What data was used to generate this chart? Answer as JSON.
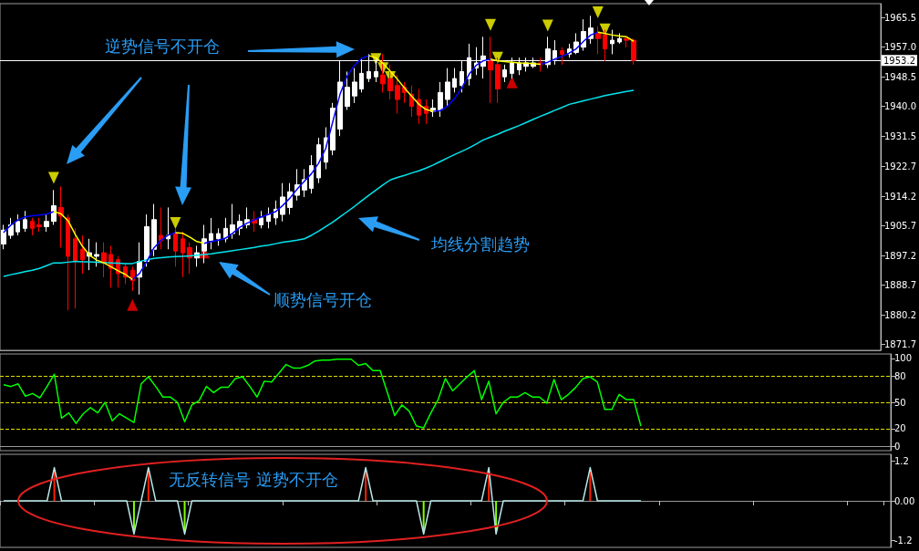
{
  "chart_data": [
    {
      "type": "candlestick",
      "categories": [
        null,
        null,
        null,
        null,
        null,
        null,
        null,
        null,
        null,
        null,
        null,
        null,
        null,
        null,
        null,
        null,
        null,
        null,
        null,
        null,
        null,
        null,
        null,
        null,
        null,
        null,
        null,
        null,
        null,
        null,
        null,
        null,
        null,
        null,
        null,
        null,
        null,
        null,
        null,
        null,
        null,
        null,
        null,
        null,
        null,
        null,
        null,
        null,
        null,
        null,
        null,
        null,
        null,
        null,
        null,
        null,
        null,
        null,
        null,
        null,
        null,
        null,
        null,
        null,
        null,
        null,
        null,
        null,
        null,
        null,
        null,
        null,
        null,
        null,
        null,
        null,
        null,
        null,
        null,
        null,
        null,
        null,
        null,
        null,
        null,
        null,
        null,
        null,
        null
      ],
      "ohlc": [
        [
          1900.5,
          1906,
          1899,
          1904.5
        ],
        [
          1903,
          1908,
          1902,
          1906
        ],
        [
          1904,
          1909,
          1903,
          1907
        ],
        [
          1905,
          1910,
          1904,
          1907.5
        ],
        [
          1907,
          1908,
          1903,
          1905
        ],
        [
          1906,
          1908,
          1904,
          1905.5
        ],
        [
          1905.5,
          1909,
          1904,
          1907
        ],
        [
          1907,
          1916,
          1906,
          1911.5
        ],
        [
          1911,
          1917,
          1899.5,
          1908.5
        ],
        [
          1908,
          1909,
          1881.5,
          1897
        ],
        [
          1902,
          1905,
          1882,
          1895.5
        ],
        [
          1899,
          1903,
          1892,
          1896
        ],
        [
          1897,
          1902,
          1893,
          1898
        ],
        [
          1897,
          1901,
          1894,
          1897.5
        ],
        [
          1898,
          1901,
          1891,
          1895
        ],
        [
          1897.5,
          1900,
          1888,
          1893.5
        ],
        [
          1896,
          1897,
          1888,
          1892
        ],
        [
          1894,
          1895,
          1889,
          1891
        ],
        [
          1893,
          1894,
          1887,
          1890
        ],
        [
          1891,
          1901,
          1886,
          1895.5
        ],
        [
          1895.5,
          1909,
          1894,
          1905.5
        ],
        [
          1899,
          1912,
          1897,
          1907.5
        ],
        [
          1903,
          1911,
          1899,
          1901.5
        ],
        [
          1902,
          1911,
          1899,
          1903
        ],
        [
          1903.5,
          1905,
          1894,
          1898.5
        ],
        [
          1902,
          1904,
          1891,
          1898
        ],
        [
          1899.5,
          1901,
          1892,
          1896.5
        ],
        [
          1896.5,
          1900,
          1894,
          1898
        ],
        [
          1898.5,
          1906,
          1895,
          1902
        ],
        [
          1901.5,
          1908,
          1899,
          1903.5
        ],
        [
          1902,
          1905,
          1900,
          1903.5
        ],
        [
          1902,
          1908,
          1901,
          1905
        ],
        [
          1903.5,
          1912,
          1902,
          1906
        ],
        [
          1905,
          1909,
          1903,
          1907
        ],
        [
          1906,
          1911,
          1905,
          1907.5
        ],
        [
          1907.5,
          1910,
          1904,
          1906.5
        ],
        [
          1906,
          1910,
          1905,
          1908
        ],
        [
          1907,
          1911,
          1905,
          1909
        ],
        [
          1908,
          1913,
          1906,
          1910.5
        ],
        [
          1909,
          1918,
          1907,
          1914
        ],
        [
          1911,
          1918,
          1909,
          1915.5
        ],
        [
          1914.5,
          1922,
          1913,
          1917.5
        ],
        [
          1916,
          1922,
          1914,
          1919
        ],
        [
          1916.5,
          1926,
          1915,
          1923
        ],
        [
          1919.5,
          1931,
          1918,
          1929
        ],
        [
          1924,
          1934,
          1922,
          1931
        ],
        [
          1927.5,
          1941,
          1926,
          1939.5
        ],
        [
          1933.5,
          1953,
          1931.5,
          1947
        ],
        [
          1940,
          1950,
          1939,
          1945.5
        ],
        [
          1943,
          1951,
          1941,
          1947
        ],
        [
          1945,
          1954,
          1944,
          1949.5
        ],
        [
          1948,
          1955,
          1947,
          1950
        ],
        [
          1948.5,
          1954,
          1947,
          1950
        ],
        [
          1949,
          1955,
          1944,
          1946.5
        ],
        [
          1948,
          1952,
          1942,
          1944.5
        ],
        [
          1946,
          1949,
          1938,
          1942
        ],
        [
          1945.5,
          1947,
          1941,
          1944
        ],
        [
          1943.5,
          1946,
          1937,
          1940
        ],
        [
          1942,
          1945,
          1935,
          1937.5
        ],
        [
          1940,
          1942,
          1935,
          1938
        ],
        [
          1938.5,
          1942,
          1937,
          1939.5
        ],
        [
          1939,
          1947,
          1937,
          1944
        ],
        [
          1942,
          1951,
          1940,
          1947
        ],
        [
          1945.5,
          1951,
          1944,
          1948
        ],
        [
          1946,
          1953,
          1944,
          1950
        ],
        [
          1948,
          1958,
          1946,
          1954
        ],
        [
          1951,
          1957,
          1949,
          1952.5
        ],
        [
          1951.5,
          1960,
          1948,
          1954.5
        ],
        [
          1953,
          1960,
          1941,
          1950.5
        ],
        [
          1952,
          1954,
          1941,
          1945
        ],
        [
          1948.5,
          1952,
          1947,
          1950.5
        ],
        [
          1949.5,
          1954,
          1948,
          1952.5
        ],
        [
          1950.5,
          1954,
          1949,
          1952.5
        ],
        [
          1951.5,
          1954,
          1950,
          1952.5
        ],
        [
          1951.5,
          1954,
          1951,
          1952.5
        ],
        [
          1952.5,
          1954,
          1950,
          1952
        ],
        [
          1952,
          1960,
          1951,
          1956.5
        ],
        [
          1953.5,
          1959,
          1952,
          1956
        ],
        [
          1956,
          1957,
          1952,
          1955
        ],
        [
          1955,
          1958,
          1954,
          1956.5
        ],
        [
          1955.5,
          1961,
          1955,
          1958.5
        ],
        [
          1957,
          1965,
          1956,
          1961.5
        ],
        [
          1959.5,
          1966,
          1958,
          1962.5
        ],
        [
          1961,
          1963,
          1955,
          1959.5
        ],
        [
          1960.5,
          1962,
          1953,
          1956.5
        ],
        [
          1958,
          1962,
          1955,
          1959
        ],
        [
          1958.5,
          1961,
          1958,
          1959.5
        ],
        [
          1959.5,
          1960,
          1957,
          1959
        ],
        [
          1959,
          1959.5,
          1952,
          1953.2
        ]
      ],
      "colors": [
        "#ffffff",
        "#ffffff",
        "#ffffff",
        "#ffffff",
        "#ff0000",
        "#ff0000",
        "#ffffff",
        "#ffffff",
        "#ff0000",
        "#ff0000",
        "#ff0000",
        "#ff0000",
        "#ffffff",
        "#ffffff",
        "#ff0000",
        "#ff0000",
        "#ff0000",
        "#ff0000",
        "#ff0000",
        "#ffffff",
        "#ffffff",
        "#ffffff",
        "#ff0000",
        "#ffffff",
        "#ff0000",
        "#ff0000",
        "#ff0000",
        "#ffffff",
        "#ffffff",
        "#ffffff",
        "#ffffff",
        "#ffffff",
        "#ffffff",
        "#ffffff",
        "#ffffff",
        "#ff0000",
        "#ffffff",
        "#ffffff",
        "#ffffff",
        "#ffffff",
        "#ffffff",
        "#ffffff",
        "#ffffff",
        "#ffffff",
        "#ffffff",
        "#ffffff",
        "#ffffff",
        "#ffffff",
        "#ffffff",
        "#ffffff",
        "#ffffff",
        "#ffffff",
        "#ffffff",
        "#ff0000",
        "#ff0000",
        "#ff0000",
        "#ff0000",
        "#ff0000",
        "#ff0000",
        "#ff0000",
        "#ffffff",
        "#ffffff",
        "#ffffff",
        "#ffffff",
        "#ffffff",
        "#ffffff",
        "#ffffff",
        "#ffffff",
        "#ff0000",
        "#ff0000",
        "#ffffff",
        "#ffffff",
        "#ffffff",
        "#ffffff",
        "#ffffff",
        "#ff0000",
        "#ffffff",
        "#ffffff",
        "#ff0000",
        "#ffffff",
        "#ffffff",
        "#ffffff",
        "#ffffff",
        "#ff0000",
        "#ff0000",
        "#ffffff",
        "#ffffff",
        "#ff0000",
        "#ff0000"
      ],
      "series": [
        {
          "type": "line",
          "color": "#00e5ee",
          "values": [
            1891.2,
            1891.7,
            1892.1,
            1892.6,
            1893,
            1893.5,
            1894.3,
            1895.1,
            1895.1,
            1895.3,
            1895.5,
            1895.4,
            1895.4,
            1895.3,
            1895.2,
            1895.1,
            1895,
            1894.9,
            1894.9,
            1895.5,
            1896,
            1896.4,
            1896.6,
            1896.8,
            1896.9,
            1897,
            1897.1,
            1897.3,
            1897.5,
            1897.7,
            1898,
            1898.3,
            1898.6,
            1898.9,
            1899.2,
            1899.5,
            1899.9,
            1900.2,
            1900.6,
            1901,
            1901.3,
            1901.6,
            1902,
            1903,
            1904.2,
            1905.5,
            1906.8,
            1908.3,
            1909.8,
            1911.3,
            1912.9,
            1914.5,
            1916,
            1917.5,
            1918.9,
            1919.6,
            1920.2,
            1920.9,
            1921.5,
            1922.3,
            1923.2,
            1924.2,
            1925.2,
            1926.2,
            1927.1,
            1928.1,
            1929.2,
            1930.4,
            1931.2,
            1932,
            1932.9,
            1933.7,
            1934.5,
            1935.4,
            1936.3,
            1937.2,
            1938,
            1938.9,
            1939.7,
            1940.6,
            1941.1,
            1941.6,
            1942.1,
            1942.6,
            1943.1,
            1943.5,
            1943.9,
            1944.3,
            1944.6
          ]
        },
        {
          "type": "line",
          "color": "#0000ff",
          "values": [
            1903.8,
            1905.9,
            1907.4,
            1908.3,
            1908.6,
            1908.8,
            1909.1,
            1909.8,
            null,
            null,
            null,
            null,
            null,
            null,
            null,
            null,
            null,
            null,
            1890.3,
            1892.1,
            1895.5,
            1899.4,
            1901.6,
            1903.1,
            1903.8,
            null,
            null,
            null,
            1900.7,
            1901.2,
            1901.6,
            1902.2,
            1903.6,
            1905.3,
            1906.5,
            1907.4,
            1908.3,
            1909,
            1909.8,
            1911.6,
            1913.7,
            1916.3,
            1918.5,
            1920.7,
            1923.7,
            1928,
            1935.8,
            1943.6,
            1948.8,
            1951.8,
            1953.8,
            1954.6,
            null,
            null,
            null,
            null,
            null,
            null,
            null,
            null,
            1938.6,
            1938.8,
            1940.1,
            1942.3,
            1945.3,
            1949.2,
            1951.8,
            1953.1,
            1953.6,
            null,
            null,
            null,
            null,
            null,
            null,
            1952.1,
            1952.7,
            1953.6,
            1954.4,
            1955.3,
            1956.6,
            1958.7,
            1960.5,
            1961.3,
            null,
            null,
            null,
            null,
            null
          ]
        },
        {
          "type": "line",
          "color": "#ffff00",
          "values": [
            null,
            null,
            null,
            null,
            null,
            null,
            null,
            1909.8,
            1909.2,
            1907.2,
            1903.3,
            1899.9,
            1897.3,
            1895.9,
            1895.1,
            1894,
            1892.8,
            1891.8,
            1890.3,
            null,
            null,
            null,
            null,
            null,
            1903.8,
            1903.6,
            1902.5,
            1901.2,
            1900.7,
            null,
            null,
            null,
            null,
            null,
            null,
            null,
            null,
            null,
            null,
            null,
            null,
            null,
            null,
            null,
            null,
            null,
            null,
            null,
            null,
            null,
            null,
            1954.6,
            1954,
            1952.3,
            1950.1,
            1947.8,
            1945.3,
            1942.9,
            1940.6,
            1939.1,
            1938.6,
            null,
            null,
            null,
            null,
            null,
            null,
            null,
            1953.6,
            1953.1,
            1952.9,
            1952.7,
            1952.5,
            1952.4,
            1952.3,
            1952.1,
            null,
            null,
            null,
            null,
            null,
            null,
            null,
            1961.3,
            1960.9,
            1960.5,
            1960.2,
            1960,
            1958.7
          ]
        },
        {
          "type": "scatter",
          "marker": "triangle",
          "color": "#ffff00",
          "values": [
            null,
            null,
            null,
            null,
            null,
            null,
            null,
            1919.5,
            null,
            null,
            null,
            null,
            null,
            null,
            null,
            null,
            null,
            null,
            null,
            null,
            null,
            null,
            null,
            null,
            1906.5,
            null,
            null,
            null,
            null,
            null,
            null,
            null,
            null,
            null,
            null,
            null,
            null,
            null,
            null,
            null,
            null,
            null,
            null,
            null,
            null,
            null,
            null,
            null,
            null,
            null,
            null,
            null,
            1953.6,
            1951,
            1948.4,
            null,
            null,
            null,
            null,
            null,
            null,
            null,
            null,
            null,
            null,
            null,
            null,
            null,
            1963.4,
            1954,
            null,
            null,
            null,
            null,
            null,
            null,
            1963.2,
            null,
            null,
            null,
            null,
            null,
            null,
            1967,
            1962.1,
            null,
            null,
            null,
            null
          ]
        },
        {
          "type": "scatter",
          "marker": "triangle",
          "color": "#ff0000",
          "values": [
            null,
            null,
            null,
            null,
            null,
            null,
            null,
            null,
            null,
            null,
            null,
            null,
            null,
            null,
            null,
            null,
            null,
            null,
            1883,
            null,
            null,
            null,
            null,
            null,
            null,
            null,
            null,
            null,
            1898.1,
            null,
            null,
            null,
            null,
            null,
            null,
            null,
            null,
            null,
            null,
            null,
            null,
            null,
            null,
            null,
            null,
            null,
            null,
            null,
            null,
            null,
            null,
            null,
            null,
            null,
            null,
            null,
            null,
            null,
            null,
            null,
            null,
            null,
            null,
            null,
            null,
            null,
            null,
            null,
            null,
            null,
            null,
            1946.9,
            null,
            null,
            null,
            null,
            null,
            null,
            null,
            null,
            null,
            null,
            null,
            null,
            null,
            null,
            null,
            null,
            null
          ]
        }
      ],
      "ylim": [
        1870,
        1969.5
      ],
      "yticks": [
        1871.7,
        1880.2,
        1888.7,
        1897.2,
        1905.7,
        1914.2,
        1922.7,
        1931.5,
        {
          "value": 1940,
          "label": "1940.0"
        },
        1948.5,
        {
          "value": 1957,
          "label": "1957.0"
        },
        1965.5
      ],
      "ref_lines": [
        {
          "axis": "y",
          "value": 1953.2,
          "label": "1953.2",
          "color": "#ffffff"
        }
      ],
      "annotations": [
        "逆势信号不开仓",
        "均线分割趋势",
        "顺势信号开仓"
      ],
      "tick_labels": "y"
    },
    {
      "type": "line",
      "categories": [
        null,
        null,
        null,
        null,
        null,
        null,
        null,
        null,
        null,
        null,
        null,
        null,
        null,
        null,
        null,
        null,
        null,
        null,
        null,
        null,
        null,
        null,
        null,
        null,
        null,
        null,
        null,
        null,
        null,
        null,
        null,
        null,
        null,
        null,
        null,
        null,
        null,
        null,
        null,
        null,
        null,
        null,
        null,
        null,
        null,
        null,
        null,
        null,
        null,
        null,
        null,
        null,
        null,
        null,
        null,
        null,
        null,
        null,
        null,
        null,
        null,
        null,
        null,
        null,
        null,
        null,
        null,
        null,
        null,
        null,
        null,
        null,
        null,
        null,
        null,
        null,
        null,
        null,
        null,
        null,
        null,
        null,
        null,
        null,
        null,
        null,
        null,
        null,
        null
      ],
      "color": "#00ff00",
      "values": [
        70,
        68,
        71,
        57,
        60,
        55,
        68,
        82,
        32,
        38,
        26,
        37,
        44,
        38,
        50,
        29,
        37,
        32,
        27,
        71,
        79,
        68,
        56,
        56,
        50,
        28,
        47,
        52,
        68,
        61,
        67,
        67,
        77,
        79,
        68,
        56,
        74,
        73,
        83,
        93,
        89,
        89,
        92,
        97,
        98,
        98,
        99,
        99,
        99,
        92,
        94,
        86,
        86,
        61,
        35,
        47,
        40,
        23,
        21,
        38,
        53,
        77,
        63,
        71,
        79,
        86,
        53,
        74,
        37,
        50,
        56,
        56,
        61,
        56,
        56,
        49,
        76,
        53,
        59,
        67,
        77,
        79,
        73,
        42,
        42,
        59,
        53,
        53,
        23
      ],
      "ylim": [
        -5,
        105
      ],
      "yticks": [
        0,
        20,
        50,
        80,
        100
      ],
      "ref_lines": [
        {
          "axis": "y",
          "value": 20,
          "color": "#e0e000",
          "line_style": "dashed"
        },
        {
          "axis": "y",
          "value": 50,
          "color": "#e0e000",
          "line_style": "dashed"
        },
        {
          "axis": "y",
          "value": 80,
          "color": "#e0e000",
          "line_style": "dashed"
        }
      ],
      "tick_labels": "y"
    },
    {
      "type": "line",
      "categories": [
        null,
        null,
        null,
        null,
        null,
        null,
        null,
        null,
        null,
        null,
        null,
        null,
        null,
        null,
        null,
        null,
        null,
        null,
        null,
        null,
        null,
        null,
        null,
        null,
        null,
        null,
        null,
        null,
        null,
        null,
        null,
        null,
        null,
        null,
        null,
        null,
        null,
        null,
        null,
        null,
        null,
        null,
        null,
        null,
        null,
        null,
        null,
        null,
        null,
        null,
        null,
        null,
        null,
        null,
        null,
        null,
        null,
        null,
        null,
        null,
        null,
        null,
        null,
        null,
        null,
        null,
        null,
        null,
        null,
        null,
        null,
        null,
        null,
        null,
        null,
        null,
        null,
        null,
        null,
        null,
        null,
        null,
        null,
        null,
        null,
        null,
        null,
        null,
        null
      ],
      "series": [
        {
          "type": "line",
          "color": "#b8e8e8",
          "values": [
            0,
            0,
            0,
            0,
            0,
            0,
            0,
            1,
            0,
            0,
            0,
            0,
            0,
            0,
            0,
            0,
            0,
            0,
            -1,
            0,
            1,
            0,
            0,
            0,
            0,
            -1,
            0,
            0,
            0,
            0,
            0,
            0,
            0,
            0,
            0,
            0,
            0,
            0,
            0,
            0,
            0,
            0,
            0,
            0,
            0,
            0,
            0,
            0,
            0,
            0,
            1,
            0,
            0,
            0,
            0,
            0,
            0,
            0,
            -1,
            0,
            0,
            0,
            0,
            0,
            0,
            0,
            0,
            1,
            -1,
            0,
            0,
            0,
            0,
            0,
            0,
            0,
            0,
            0,
            0,
            0,
            0,
            1,
            0,
            0,
            0,
            0,
            0,
            0,
            0
          ]
        },
        {
          "type": "bar",
          "color": "#ff2000",
          "values": [
            null,
            null,
            null,
            null,
            null,
            null,
            null,
            0.9,
            null,
            null,
            null,
            null,
            null,
            null,
            null,
            null,
            null,
            null,
            null,
            null,
            0.9,
            null,
            null,
            null,
            null,
            null,
            null,
            null,
            null,
            null,
            null,
            null,
            null,
            null,
            null,
            null,
            null,
            null,
            null,
            null,
            null,
            null,
            null,
            null,
            null,
            null,
            null,
            null,
            null,
            null,
            0.9,
            null,
            null,
            null,
            null,
            null,
            null,
            null,
            null,
            null,
            null,
            null,
            null,
            null,
            null,
            null,
            null,
            0.9,
            null,
            null,
            null,
            null,
            null,
            null,
            null,
            null,
            null,
            null,
            null,
            null,
            null,
            0.9,
            null,
            null,
            null,
            null,
            null,
            null,
            null
          ]
        },
        {
          "type": "bar",
          "color": "#80ff00",
          "values": [
            null,
            null,
            null,
            null,
            null,
            null,
            null,
            null,
            null,
            null,
            null,
            null,
            null,
            null,
            null,
            null,
            null,
            null,
            -0.9,
            null,
            null,
            null,
            null,
            null,
            null,
            -0.9,
            null,
            null,
            null,
            null,
            null,
            null,
            null,
            null,
            null,
            null,
            null,
            null,
            null,
            null,
            null,
            null,
            null,
            null,
            null,
            null,
            null,
            null,
            null,
            null,
            null,
            null,
            null,
            null,
            null,
            null,
            null,
            null,
            -0.9,
            null,
            null,
            null,
            null,
            null,
            null,
            null,
            null,
            null,
            -0.9,
            null,
            null,
            null,
            null,
            null,
            null,
            null,
            null,
            null,
            null,
            null,
            null,
            null,
            null,
            null,
            null,
            null,
            null,
            null,
            null
          ]
        }
      ],
      "ylim": [
        -1.4,
        1.4
      ],
      "yticks": [
        -1.2,
        {
          "value": 0,
          "label": "0.00"
        },
        1.2
      ],
      "annotations": [
        "无反转信号 逆势不开仓"
      ],
      "tick_labels": "y"
    }
  ]
}
